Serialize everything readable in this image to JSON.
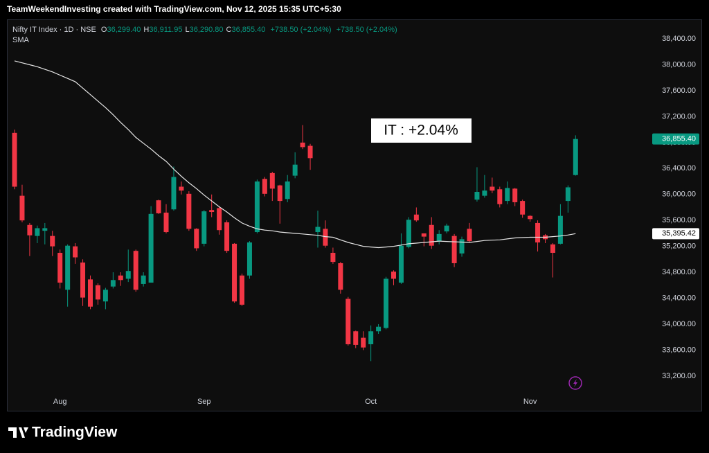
{
  "header": {
    "attribution": "TeamWeekendInvesting created with TradingView.com, Nov 12, 2025 15:35 UTC+5:30"
  },
  "footer": {
    "brand": "TradingView"
  },
  "chart_data": {
    "type": "candlestick",
    "annotation": "IT : +2.04%",
    "legend": {
      "symbol": "Nifty IT Index · 1D · NSE",
      "ohlc": [
        {
          "label": "O",
          "value": "36,299.40"
        },
        {
          "label": "H",
          "value": "36,911.95"
        },
        {
          "label": "L",
          "value": "36,290.80"
        },
        {
          "label": "C",
          "value": "36,855.40"
        }
      ],
      "changes": [
        "+738.50 (+2.04%)",
        "+738.50 (+2.04%)"
      ]
    },
    "categories": [
      null,
      null,
      null,
      null,
      null,
      null,
      "Aug",
      null,
      null,
      null,
      null,
      null,
      null,
      null,
      null,
      null,
      null,
      null,
      null,
      null,
      null,
      null,
      null,
      null,
      null,
      "Sep",
      null,
      null,
      null,
      null,
      null,
      null,
      null,
      null,
      null,
      null,
      null,
      null,
      null,
      null,
      null,
      null,
      null,
      null,
      null,
      null,
      null,
      "Oct",
      null,
      null,
      null,
      null,
      null,
      null,
      null,
      null,
      null,
      null,
      null,
      null,
      null,
      null,
      null,
      null,
      null,
      null,
      null,
      null,
      "Nov",
      null,
      null,
      null,
      null,
      null,
      null
    ],
    "open": [
      36950,
      35980,
      35530,
      35360,
      35440,
      35360,
      35100,
      34530,
      35200,
      34950,
      34690,
      34600,
      34350,
      34580,
      34750,
      34700,
      35130,
      34620,
      34640,
      35910,
      35720,
      35770,
      36120,
      36010,
      35470,
      35240,
      35760,
      35790,
      35570,
      35240,
      34750,
      34750,
      35420,
      36240,
      36330,
      36140,
      35930,
      36290,
      36800,
      36750,
      35420,
      35470,
      35100,
      34940,
      34390,
      33890,
      33790,
      33690,
      33890,
      33940,
      34810,
      34640,
      35190,
      35690,
      35400,
      35530,
      35280,
      35430,
      35360,
      35090,
      35470,
      35920,
      35980,
      36120,
      36080,
      35900,
      36090,
      35900,
      35670,
      35560,
      35370,
      35230,
      35240,
      35900,
      36299.4
    ],
    "high": [
      37000,
      36150,
      35560,
      35520,
      35560,
      35440,
      35150,
      35230,
      35250,
      35000,
      34750,
      34630,
      34560,
      34800,
      34800,
      35150,
      35150,
      34800,
      35820,
      35920,
      35850,
      36430,
      36200,
      36050,
      35480,
      35760,
      36000,
      35820,
      35600,
      35250,
      34780,
      35280,
      36230,
      36270,
      36350,
      36150,
      36300,
      36650,
      37070,
      36780,
      35750,
      35600,
      35180,
      34960,
      34420,
      33900,
      33890,
      33980,
      34000,
      34730,
      34830,
      35400,
      35650,
      35800,
      35400,
      35650,
      35450,
      35550,
      35390,
      35350,
      35560,
      36420,
      36300,
      36260,
      36120,
      36200,
      36100,
      35920,
      35680,
      35600,
      35390,
      35250,
      35850,
      36140,
      36911.95
    ],
    "low": [
      36080,
      35570,
      35050,
      35250,
      35230,
      35050,
      34550,
      34270,
      34930,
      34280,
      34230,
      34300,
      34230,
      34550,
      34590,
      34650,
      34500,
      34580,
      34640,
      35700,
      35400,
      35750,
      36000,
      35440,
      35130,
      35200,
      35650,
      35380,
      35100,
      34330,
      34280,
      34700,
      35400,
      35970,
      35900,
      35550,
      35880,
      36250,
      36700,
      36380,
      35180,
      35180,
      34930,
      34470,
      33670,
      33630,
      33600,
      33430,
      33850,
      33920,
      34600,
      34620,
      35170,
      35580,
      35200,
      35160,
      35230,
      35400,
      34880,
      35040,
      35260,
      35890,
      35950,
      36020,
      35800,
      35850,
      35820,
      35640,
      35580,
      35120,
      35250,
      34720,
      35230,
      35720,
      36290.8
    ],
    "close": [
      36120,
      35600,
      35370,
      35480,
      35480,
      35200,
      34640,
      35210,
      35030,
      34410,
      34270,
      34380,
      34530,
      34680,
      34680,
      34820,
      34530,
      34750,
      35700,
      35710,
      35420,
      36270,
      36060,
      35470,
      35170,
      35740,
      35730,
      35450,
      35130,
      34350,
      34300,
      35260,
      36200,
      36010,
      36090,
      35900,
      36200,
      36460,
      36730,
      36560,
      35500,
      35210,
      34960,
      34530,
      33690,
      33680,
      33640,
      33890,
      33960,
      34700,
      34700,
      35210,
      35610,
      35600,
      35350,
      35210,
      35390,
      35520,
      34940,
      35310,
      35280,
      36040,
      36060,
      36060,
      35850,
      36100,
      35880,
      35690,
      35620,
      35260,
      35310,
      35100,
      35670,
      36110,
      36855.4
    ],
    "up_color": "#089981",
    "down_color": "#f23645",
    "series": [
      {
        "name": "SMA",
        "color": "#e6e6e6",
        "values": [
          38060,
          38030,
          38000,
          37970,
          37930,
          37890,
          37840,
          37790,
          37740,
          37640,
          37540,
          37440,
          37340,
          37230,
          37110,
          37000,
          36880,
          36790,
          36700,
          36600,
          36510,
          36390,
          36280,
          36180,
          36090,
          35990,
          35900,
          35810,
          35730,
          35640,
          35560,
          35510,
          35470,
          35450,
          35440,
          35420,
          35410,
          35400,
          35390,
          35380,
          35370,
          35350,
          35340,
          35300,
          35260,
          35230,
          35200,
          35190,
          35180,
          35190,
          35200,
          35220,
          35240,
          35250,
          35260,
          35270,
          35280,
          35275,
          35270,
          35265,
          35260,
          35275,
          35290,
          35295,
          35300,
          35315,
          35330,
          35335,
          35340,
          35340,
          35340,
          35350,
          35360,
          35375,
          35395.42
        ]
      }
    ],
    "price_tags": [
      {
        "value": 36855.4,
        "label": "36,855.40",
        "color": "#089981"
      },
      {
        "value": 35395.42,
        "label": "35,395.42",
        "color": "#ffffff"
      }
    ],
    "ylim": [
      32910,
      38700
    ],
    "yticks": [
      {
        "value": 33200,
        "label": "33,200.00"
      },
      {
        "value": 33600,
        "label": "33,600.00"
      },
      {
        "value": 34000,
        "label": "34,000.00"
      },
      {
        "value": 34400,
        "label": "34,400.00"
      },
      {
        "value": 34800,
        "label": "34,800.00"
      },
      {
        "value": 35200,
        "label": "35,200.00"
      },
      {
        "value": 35600,
        "label": "35,600.00"
      },
      {
        "value": 36000,
        "label": "36,000.00"
      },
      {
        "value": 36400,
        "label": "36,400.00"
      },
      {
        "value": 36800,
        "label": "36,800.00"
      },
      {
        "value": 37200,
        "label": "37,200.00"
      },
      {
        "value": 37600,
        "label": "37,600.00"
      },
      {
        "value": 38000,
        "label": "38,000.00"
      },
      {
        "value": 38400,
        "label": "38,400.00"
      }
    ],
    "grid": false
  }
}
